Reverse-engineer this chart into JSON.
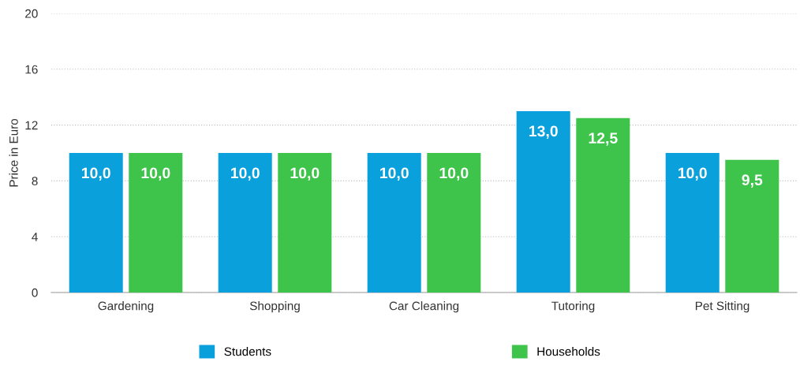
{
  "chart_data": {
    "type": "bar",
    "ylabel": "Price in Euro",
    "categories": [
      "Gardening",
      "Shopping",
      "Car Cleaning",
      "Tutoring",
      "Pet Sitting"
    ],
    "series": [
      {
        "name": "Students",
        "color": "#0aa0dc",
        "values": [
          10.0,
          10.0,
          10.0,
          13.0,
          10.0
        ],
        "value_labels": [
          "10,0",
          "10,0",
          "10,0",
          "13,0",
          "10,0"
        ]
      },
      {
        "name": "Households",
        "color": "#3ec44a",
        "values": [
          10.0,
          10.0,
          10.0,
          12.5,
          9.5
        ],
        "value_labels": [
          "10,0",
          "10,0",
          "10,0",
          "12,5",
          "9,5"
        ]
      }
    ],
    "ylim": [
      0,
      20
    ],
    "yticks": [
      0,
      4,
      8,
      12,
      16,
      20
    ],
    "grid": "y",
    "legend": "bottom"
  }
}
